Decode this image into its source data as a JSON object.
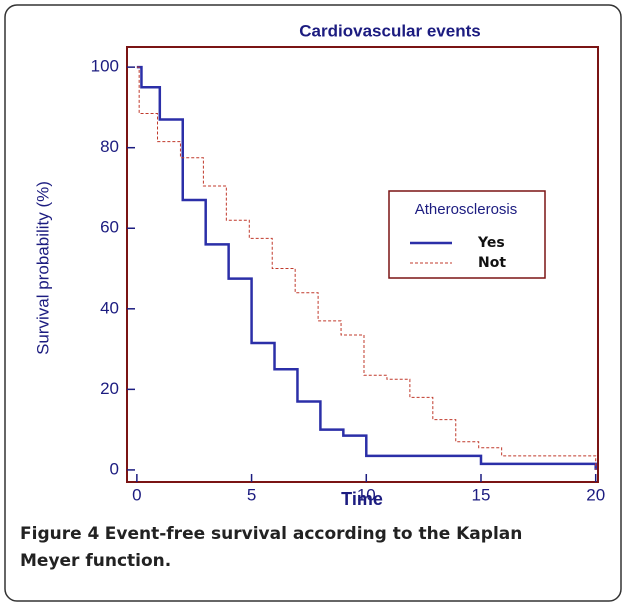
{
  "chart_data": {
    "type": "step",
    "title": "Cardiovascular events",
    "x_label": "Time",
    "y_label": "Survival probability (%)",
    "legend_title": "Atherosclerosis",
    "xlim": [
      -0.43,
      20.1
    ],
    "xticks": [
      0,
      5,
      10,
      15,
      20
    ],
    "ylim": [
      -3,
      105
    ],
    "yticks": [
      0,
      20,
      40,
      60,
      80,
      100
    ],
    "series": [
      {
        "name": "Yes",
        "color": "#2b2fa8",
        "style": "solid",
        "x": [
          0,
          0.2,
          1,
          2,
          3,
          4,
          5,
          6,
          7,
          8,
          9,
          10,
          15,
          20
        ],
        "values": [
          100,
          95,
          87,
          67,
          56,
          47.5,
          31.5,
          25,
          17,
          10,
          8.5,
          3.5,
          1.5,
          0
        ]
      },
      {
        "name": "Not",
        "color": "#c0392b",
        "style": "dashed",
        "x": [
          0,
          0.1,
          0.9,
          1.9,
          2.9,
          3.9,
          4.9,
          5.9,
          6.9,
          7.9,
          8.9,
          9.9,
          10.9,
          11.9,
          12.9,
          13.9,
          14.9,
          15.9,
          20
        ],
        "values": [
          100,
          88.5,
          81.5,
          77.5,
          70.5,
          62,
          57.5,
          50,
          44,
          37,
          33.5,
          23.5,
          22.5,
          18,
          12.5,
          7,
          5.5,
          3.5,
          0
        ]
      }
    ]
  },
  "caption": {
    "label": "Figure 4",
    "text": "Event-free survival according to the Kaplan Meyer function."
  }
}
